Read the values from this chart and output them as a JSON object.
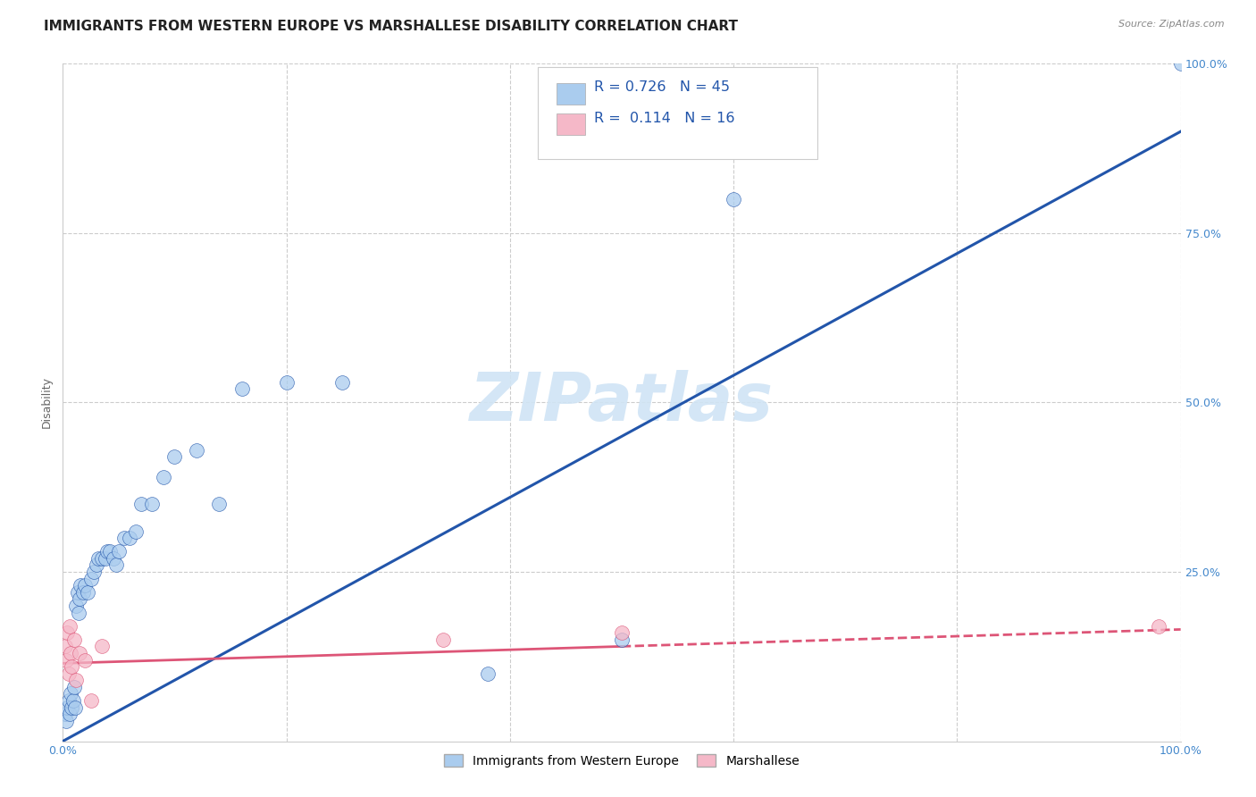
{
  "title": "IMMIGRANTS FROM WESTERN EUROPE VS MARSHALLESE DISABILITY CORRELATION CHART",
  "source": "Source: ZipAtlas.com",
  "ylabel": "Disability",
  "blue_label": "Immigrants from Western Europe",
  "pink_label": "Marshallese",
  "blue_R": 0.726,
  "blue_N": 45,
  "pink_R": 0.114,
  "pink_N": 16,
  "blue_color": "#aaccee",
  "pink_color": "#f5b8c8",
  "blue_line_color": "#2255aa",
  "pink_line_color": "#dd5577",
  "watermark": "ZIPatlas",
  "blue_scatter_x": [
    0.002,
    0.003,
    0.004,
    0.005,
    0.006,
    0.007,
    0.008,
    0.009,
    0.01,
    0.011,
    0.012,
    0.013,
    0.014,
    0.015,
    0.016,
    0.018,
    0.02,
    0.022,
    0.025,
    0.028,
    0.03,
    0.032,
    0.035,
    0.038,
    0.04,
    0.042,
    0.045,
    0.048,
    0.05,
    0.055,
    0.06,
    0.065,
    0.07,
    0.08,
    0.09,
    0.1,
    0.12,
    0.14,
    0.16,
    0.2,
    0.25,
    0.38,
    0.5,
    0.6,
    1.0
  ],
  "blue_scatter_y": [
    0.04,
    0.03,
    0.05,
    0.06,
    0.04,
    0.07,
    0.05,
    0.06,
    0.08,
    0.05,
    0.2,
    0.22,
    0.19,
    0.21,
    0.23,
    0.22,
    0.23,
    0.22,
    0.24,
    0.25,
    0.26,
    0.27,
    0.27,
    0.27,
    0.28,
    0.28,
    0.27,
    0.26,
    0.28,
    0.3,
    0.3,
    0.31,
    0.35,
    0.35,
    0.39,
    0.42,
    0.43,
    0.35,
    0.52,
    0.53,
    0.53,
    0.1,
    0.15,
    0.8,
    1.0
  ],
  "pink_scatter_x": [
    0.002,
    0.003,
    0.004,
    0.005,
    0.006,
    0.007,
    0.008,
    0.01,
    0.012,
    0.015,
    0.02,
    0.025,
    0.035,
    0.34,
    0.5,
    0.98
  ],
  "pink_scatter_y": [
    0.14,
    0.12,
    0.16,
    0.1,
    0.17,
    0.13,
    0.11,
    0.15,
    0.09,
    0.13,
    0.12,
    0.06,
    0.14,
    0.15,
    0.16,
    0.17
  ],
  "blue_line_x0": 0.0,
  "blue_line_y0": 0.0,
  "blue_line_x1": 1.0,
  "blue_line_y1": 0.9,
  "pink_line_x0": 0.0,
  "pink_line_y0": 0.115,
  "pink_line_x1": 1.0,
  "pink_line_y1": 0.165,
  "xlim": [
    0.0,
    1.0
  ],
  "ylim": [
    0.0,
    1.0
  ],
  "xtick_positions": [
    0.0,
    0.2,
    0.4,
    0.6,
    0.8,
    1.0
  ],
  "xticklabels": [
    "0.0%",
    "",
    "",
    "",
    "",
    "100.0%"
  ],
  "ytick_positions": [
    0.0,
    0.25,
    0.5,
    0.75,
    1.0
  ],
  "yticklabels": [
    "",
    "25.0%",
    "50.0%",
    "75.0%",
    "100.0%"
  ],
  "grid_color": "#cccccc",
  "bg_color": "#ffffff",
  "title_fontsize": 11,
  "axis_label_fontsize": 9,
  "tick_fontsize": 9,
  "tick_color": "#4488cc",
  "source_fontsize": 8,
  "legend_fontsize": 11,
  "watermark_color": "#d0e4f5",
  "watermark_fontsize": 54
}
